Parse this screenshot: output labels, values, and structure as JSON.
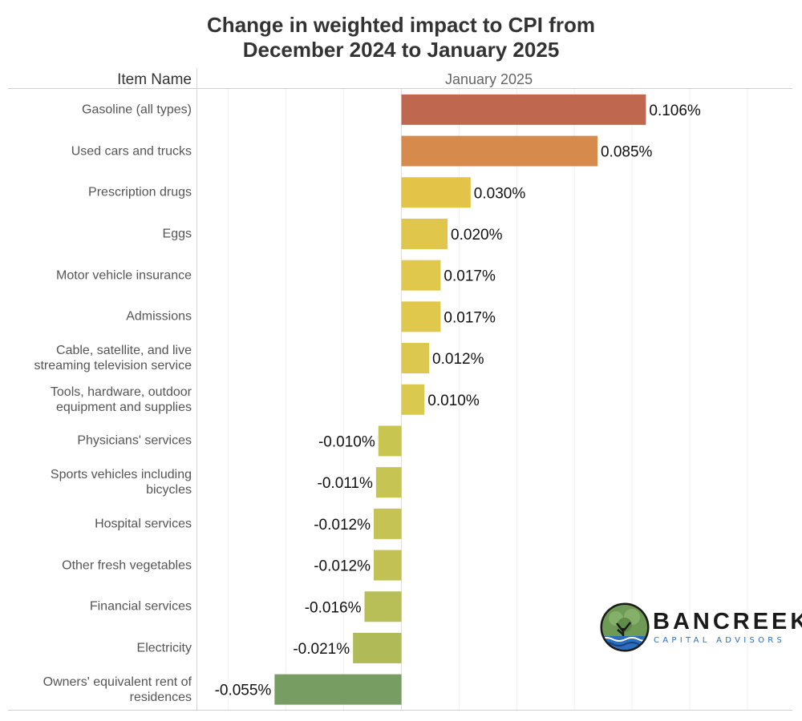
{
  "title_line1": "Change in weighted impact to CPI from",
  "title_line2": "December 2024 to January 2025",
  "row_header": "Item Name",
  "column_header": "January 2025",
  "logo": {
    "name": "BANCREEK",
    "tagline": "CAPITAL ADVISORS"
  },
  "chart_data": {
    "type": "bar",
    "orientation": "horizontal",
    "title": "Change in weighted impact to CPI from December 2024 to January 2025",
    "xlabel": "January 2025",
    "ylabel": "Item Name",
    "unit": "%",
    "xlim": [
      -0.0885,
      0.1695
    ],
    "grid": true,
    "legend": "none",
    "categories": [
      "Gasoline (all types)",
      "Used cars and trucks",
      "Prescription drugs",
      "Eggs",
      "Motor vehicle insurance",
      "Admissions",
      "Cable, satellite, and live\nstreaming television service",
      "Tools, hardware, outdoor\nequipment and supplies",
      "Physicians' services",
      "Sports vehicles including\nbicycles",
      "Hospital services",
      "Other fresh vegetables",
      "Financial services",
      "Electricity",
      "Owners' equivalent rent of\nresidences"
    ],
    "values": [
      0.106,
      0.085,
      0.03,
      0.02,
      0.017,
      0.017,
      0.012,
      0.01,
      -0.01,
      -0.011,
      -0.012,
      -0.012,
      -0.016,
      -0.021,
      -0.055
    ],
    "data_labels": [
      "0.106%",
      "0.085%",
      "0.030%",
      "0.020%",
      "0.017%",
      "0.017%",
      "0.012%",
      "0.010%",
      "-0.010%",
      "-0.011%",
      "-0.012%",
      "-0.012%",
      "-0.016%",
      "-0.021%",
      "-0.055%"
    ],
    "colors": [
      "#c0674f",
      "#d68b4d",
      "#e4c448",
      "#e0c64a",
      "#dfc84c",
      "#dfc84c",
      "#dcc84e",
      "#dac94f",
      "#c9c551",
      "#c6c452",
      "#c4c353",
      "#c2c254",
      "#b8bf56",
      "#b0bb57",
      "#779d62"
    ]
  }
}
